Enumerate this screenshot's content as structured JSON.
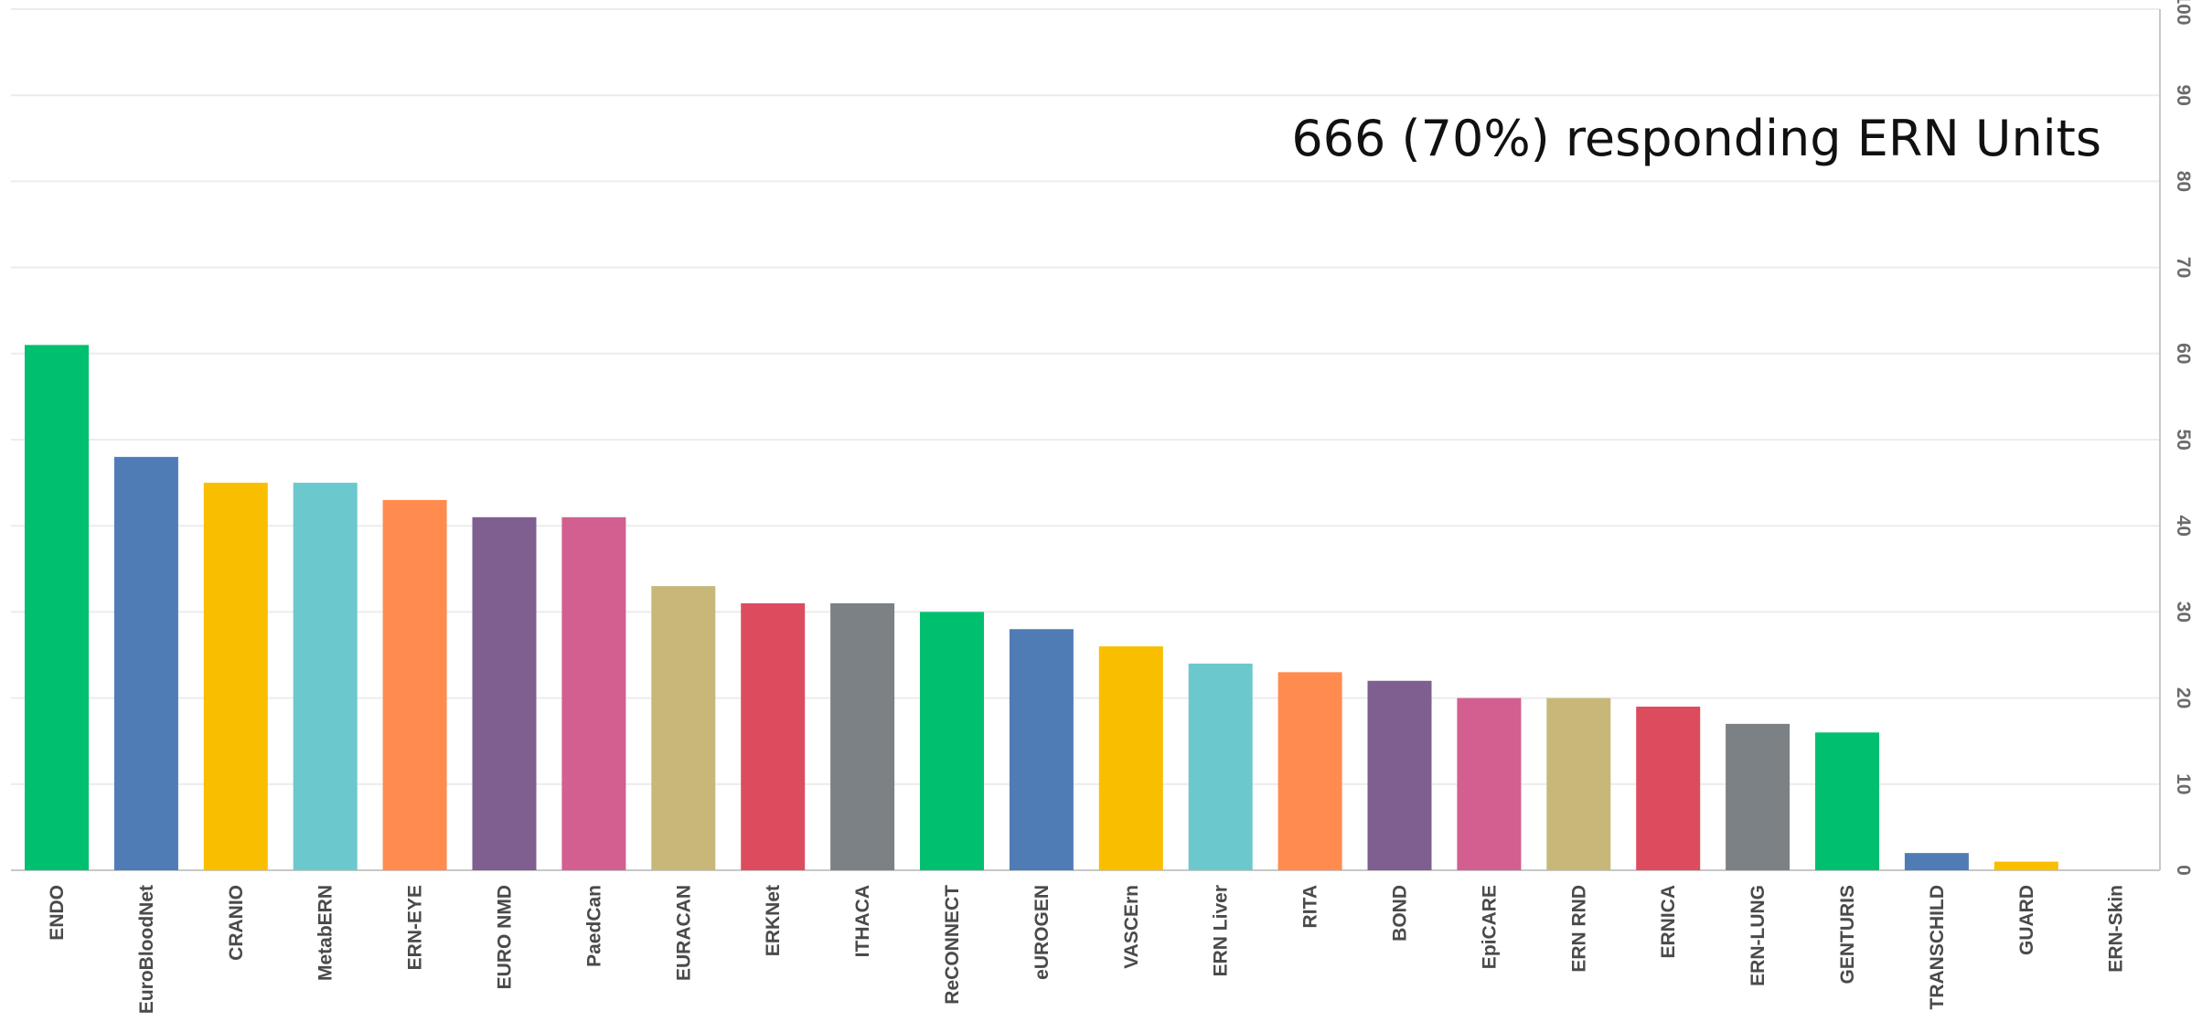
{
  "chart_data": {
    "type": "bar",
    "annotation": "666 (70%) responding ERN Units",
    "categories": [
      "ENDO",
      "EuroBloodNet",
      "CRANIO",
      "MetabERN",
      "ERN-EYE",
      "EURO NMD",
      "PaedCan",
      "EURACAN",
      "ERKNet",
      "ITHACA",
      "ReCONNECT",
      "eUROGEN",
      "VASCErn",
      "ERN Liver",
      "RITA",
      "BOND",
      "EpiCARE",
      "ERN RND",
      "ERNICA",
      "ERN-LUNG",
      "GENTURIS",
      "TRANSCHILD",
      "GUARD",
      "ERN-Skin"
    ],
    "values": [
      61,
      48,
      45,
      45,
      43,
      41,
      41,
      33,
      31,
      31,
      30,
      28,
      26,
      24,
      23,
      22,
      20,
      20,
      19,
      17,
      16,
      2,
      1,
      0
    ],
    "colors": [
      "#00bf6f",
      "#507cb6",
      "#f9be00",
      "#6bc8cd",
      "#ff8b4f",
      "#7f5e90",
      "#d25f90",
      "#c7b879",
      "#dd4c5e",
      "#7b8185",
      "#00bf6f",
      "#507cb6",
      "#f9be00",
      "#6bc8cd",
      "#ff8b4f",
      "#7f5e90",
      "#d25f90",
      "#c7b879",
      "#dd4c5e",
      "#7b8185",
      "#00bf6f",
      "#507cb6",
      "#f9be00",
      "#6bc8cd"
    ],
    "yticks": [
      0,
      10,
      20,
      30,
      40,
      50,
      60,
      70,
      80,
      90,
      100
    ],
    "ylim": [
      0,
      100
    ],
    "axis_position": "right",
    "grid": true,
    "title": "",
    "xlabel": "",
    "ylabel": ""
  }
}
